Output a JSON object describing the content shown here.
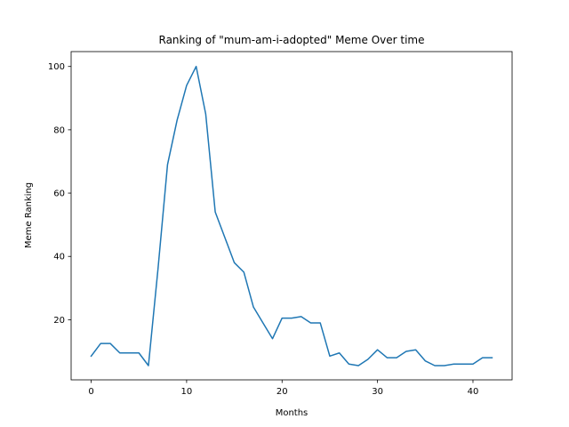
{
  "chart_data": {
    "type": "line",
    "title": "Ranking of \"mum-am-i-adopted\" Meme Over time",
    "xlabel": "Months",
    "ylabel": "Meme Ranking",
    "xlim": [
      -2.1,
      44.1
    ],
    "ylim": [
      1.0,
      104.7
    ],
    "xticks": [
      0,
      10,
      20,
      30,
      40
    ],
    "yticks": [
      20,
      40,
      60,
      80,
      100
    ],
    "grid": false,
    "series": [
      {
        "color": "#1f77b4",
        "x": [
          0,
          1,
          2,
          3,
          4,
          5,
          6,
          7,
          8,
          9,
          10,
          11,
          12,
          13,
          14,
          15,
          16,
          17,
          18,
          19,
          20,
          21,
          22,
          23,
          24,
          25,
          26,
          27,
          28,
          29,
          30,
          31,
          32,
          33,
          34,
          35,
          36,
          37,
          38,
          39,
          40,
          41,
          42
        ],
        "y": [
          8.5,
          12.5,
          12.5,
          9.5,
          9.5,
          9.5,
          5.5,
          36,
          69,
          83,
          94,
          100,
          85,
          54,
          46,
          38,
          35,
          24,
          19,
          14,
          20.5,
          20.5,
          21,
          19,
          19,
          8.5,
          9.5,
          6,
          5.5,
          7.5,
          10.5,
          8,
          8,
          10,
          10.5,
          7,
          5.5,
          5.5,
          6,
          6,
          6,
          8,
          8
        ]
      }
    ]
  }
}
